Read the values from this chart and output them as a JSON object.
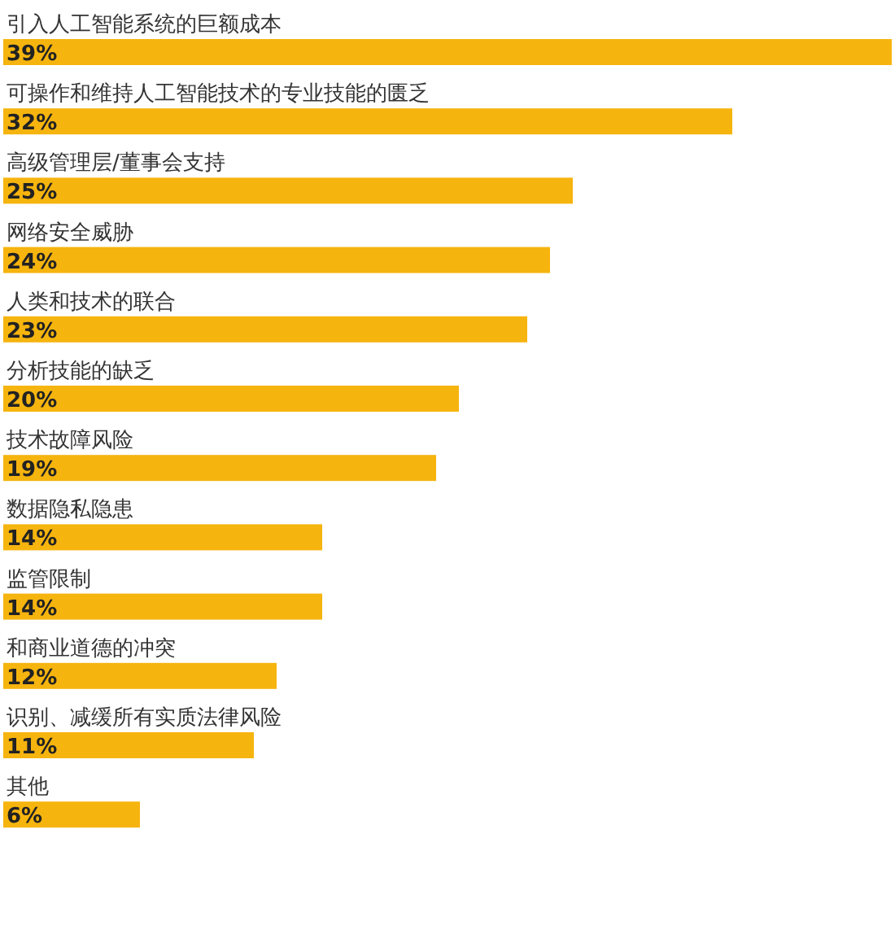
{
  "chart_data": {
    "type": "bar",
    "orientation": "horizontal",
    "categories": [
      "引入人工智能系统的巨额成本",
      "可操作和维持人工智能技术的专业技能的匮乏",
      "高级管理层/董事会支持",
      "网络安全威胁",
      "人类和技术的联合",
      "分析技能的缺乏",
      "技术故障风险",
      "数据隐私隐患",
      "监管限制",
      "和商业道德的冲突",
      "识别、减缓所有实质法律风险",
      "其他"
    ],
    "values": [
      39,
      32,
      25,
      24,
      23,
      20,
      19,
      14,
      14,
      12,
      11,
      6
    ],
    "value_labels": [
      "39%",
      "32%",
      "25%",
      "24%",
      "23%",
      "20%",
      "19%",
      "14%",
      "14%",
      "12%",
      "11%",
      "6%"
    ],
    "color": "#f6b40e"
  }
}
